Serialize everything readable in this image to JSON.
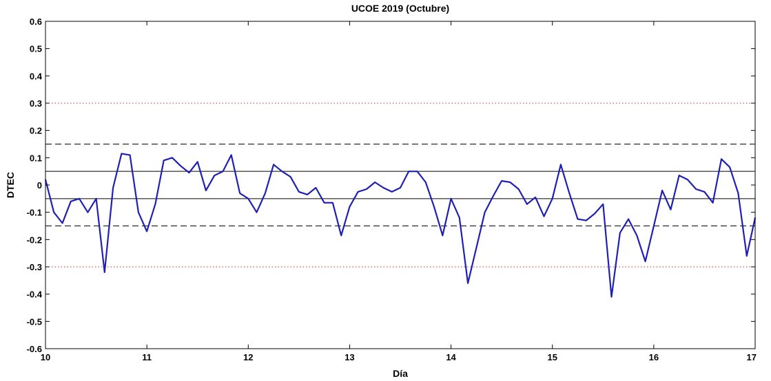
{
  "chart_data": {
    "type": "line",
    "title": "UCOE 2019 (Octubre)",
    "xlabel": "Día",
    "ylabel": "DTEC",
    "xlim": [
      10,
      17
    ],
    "ylim": [
      -0.6,
      0.6
    ],
    "xticks": [
      "10",
      "11",
      "12",
      "13",
      "14",
      "15",
      "16",
      "17"
    ],
    "yticks": [
      "0.6",
      "0.5",
      "0.4",
      "0.3",
      "0.2",
      "0.1",
      "0",
      "-0.1",
      "-0.2",
      "-0.3",
      "-0.4",
      "-0.5",
      "-0.6"
    ],
    "grid": false,
    "reference_lines": [
      {
        "y": 0.3,
        "style": "dotted",
        "color": "#d62728"
      },
      {
        "y": -0.3,
        "style": "dotted",
        "color": "#d62728"
      },
      {
        "y": 0.15,
        "style": "dashed",
        "color": "#000000"
      },
      {
        "y": -0.15,
        "style": "dashed",
        "color": "#000000"
      },
      {
        "y": 0.05,
        "style": "solid",
        "color": "#000000"
      },
      {
        "y": -0.05,
        "style": "solid",
        "color": "#000000"
      }
    ],
    "series": [
      {
        "color": "#1f1fb4",
        "x": [
          10.0,
          10.083,
          10.167,
          10.25,
          10.333,
          10.417,
          10.5,
          10.583,
          10.667,
          10.75,
          10.833,
          10.917,
          11.0,
          11.083,
          11.167,
          11.25,
          11.333,
          11.417,
          11.5,
          11.583,
          11.667,
          11.75,
          11.833,
          11.917,
          12.0,
          12.083,
          12.167,
          12.25,
          12.333,
          12.417,
          12.5,
          12.583,
          12.667,
          12.75,
          12.833,
          12.917,
          13.0,
          13.083,
          13.167,
          13.25,
          13.333,
          13.417,
          13.5,
          13.583,
          13.667,
          13.75,
          13.833,
          13.917,
          14.0,
          14.083,
          14.167,
          14.25,
          14.333,
          14.417,
          14.5,
          14.583,
          14.667,
          14.75,
          14.833,
          14.917,
          15.0,
          15.083,
          15.167,
          15.25,
          15.333,
          15.417,
          15.5,
          15.583,
          15.667,
          15.75,
          15.833,
          15.917,
          16.0,
          16.083,
          16.167,
          16.25,
          16.333,
          16.417,
          16.5,
          16.583,
          16.667,
          16.75,
          16.833,
          16.917,
          17.0
        ],
        "values": [
          0.02,
          -0.1,
          -0.14,
          -0.06,
          -0.05,
          -0.1,
          -0.05,
          -0.32,
          -0.01,
          0.115,
          0.11,
          -0.1,
          -0.17,
          -0.07,
          0.09,
          0.1,
          0.07,
          0.045,
          0.085,
          -0.02,
          0.035,
          0.05,
          0.11,
          -0.03,
          -0.05,
          -0.1,
          -0.03,
          0.075,
          0.05,
          0.03,
          -0.025,
          -0.035,
          -0.01,
          -0.065,
          -0.065,
          -0.185,
          -0.08,
          -0.025,
          -0.015,
          0.01,
          -0.01,
          -0.025,
          -0.01,
          0.05,
          0.05,
          0.01,
          -0.08,
          -0.185,
          -0.05,
          -0.12,
          -0.36,
          -0.23,
          -0.1,
          -0.04,
          0.015,
          0.01,
          -0.015,
          -0.07,
          -0.045,
          -0.115,
          -0.05,
          0.075,
          -0.03,
          -0.125,
          -0.13,
          -0.105,
          -0.07,
          -0.41,
          -0.175,
          -0.125,
          -0.185,
          -0.28,
          -0.15,
          -0.02,
          -0.09,
          0.035,
          0.02,
          -0.015,
          -0.025,
          -0.065,
          0.095,
          0.065,
          -0.03,
          -0.26,
          -0.12
        ]
      }
    ]
  }
}
